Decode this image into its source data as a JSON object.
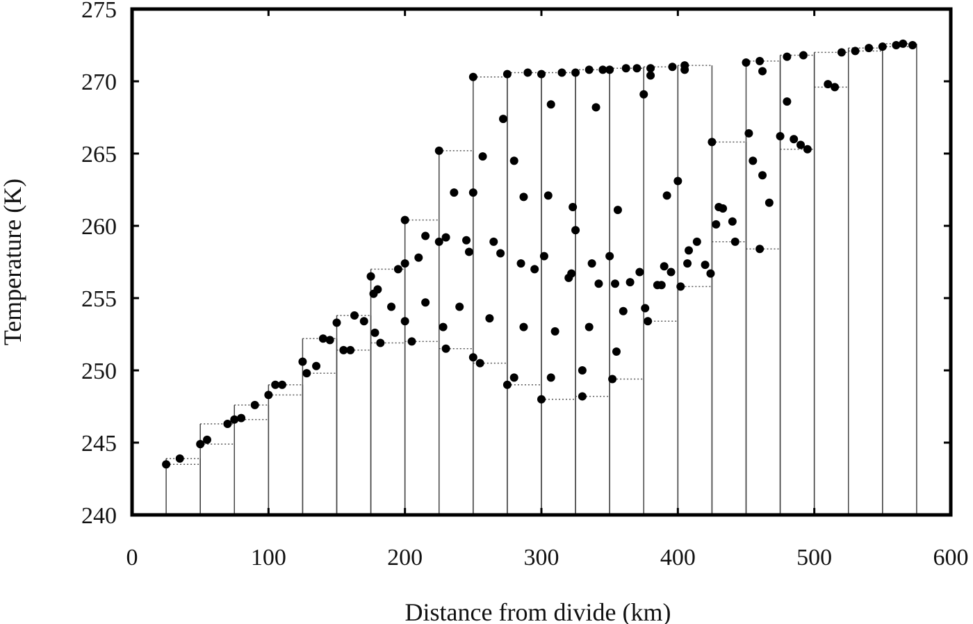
{
  "chart_data": {
    "type": "scatter",
    "title": "",
    "xlabel": "Distance from divide (km)",
    "ylabel": "Temperature (K)",
    "xlim": [
      0,
      600
    ],
    "ylim": [
      240,
      275
    ],
    "xticks": [
      0,
      100,
      200,
      300,
      400,
      500,
      600
    ],
    "yticks": [
      240,
      245,
      250,
      255,
      260,
      265,
      270,
      275
    ],
    "grid": false,
    "legend": "none",
    "series": [
      {
        "values": [
          [
            25,
            243.5
          ],
          [
            35,
            243.9
          ],
          [
            50,
            244.9
          ],
          [
            55,
            245.2
          ],
          [
            70,
            246.3
          ],
          [
            75,
            246.6
          ],
          [
            80,
            246.7
          ],
          [
            90,
            247.6
          ],
          [
            100,
            248.3
          ],
          [
            105,
            249.0
          ],
          [
            110,
            249.0
          ],
          [
            125,
            250.6
          ],
          [
            128,
            249.8
          ],
          [
            135,
            250.3
          ],
          [
            140,
            252.2
          ],
          [
            145,
            252.1
          ],
          [
            150,
            253.3
          ],
          [
            155,
            251.4
          ],
          [
            160,
            251.4
          ],
          [
            163,
            253.8
          ],
          [
            170,
            253.4
          ],
          [
            175,
            256.5
          ],
          [
            177,
            255.3
          ],
          [
            180,
            255.6
          ],
          [
            178,
            252.6
          ],
          [
            182,
            251.9
          ],
          [
            190,
            254.4
          ],
          [
            195,
            257.0
          ],
          [
            200,
            257.4
          ],
          [
            200,
            253.4
          ],
          [
            200,
            260.4
          ],
          [
            205,
            252.0
          ],
          [
            210,
            257.8
          ],
          [
            215,
            254.7
          ],
          [
            215,
            259.3
          ],
          [
            225,
            258.9
          ],
          [
            225,
            265.2
          ],
          [
            228,
            253.0
          ],
          [
            230,
            259.2
          ],
          [
            230,
            251.5
          ],
          [
            236,
            262.3
          ],
          [
            240,
            254.4
          ],
          [
            245,
            259.0
          ],
          [
            247,
            258.2
          ],
          [
            250,
            270.3
          ],
          [
            250,
            262.3
          ],
          [
            250,
            250.9
          ],
          [
            255,
            250.5
          ],
          [
            257,
            264.8
          ],
          [
            262,
            253.6
          ],
          [
            265,
            258.9
          ],
          [
            270,
            258.1
          ],
          [
            272,
            267.4
          ],
          [
            275,
            270.5
          ],
          [
            275,
            249.0
          ],
          [
            280,
            264.5
          ],
          [
            280,
            249.5
          ],
          [
            285,
            257.4
          ],
          [
            287,
            253.0
          ],
          [
            287,
            262.0
          ],
          [
            290,
            270.6
          ],
          [
            295,
            257.0
          ],
          [
            300,
            270.5
          ],
          [
            302,
            257.9
          ],
          [
            300,
            248.0
          ],
          [
            305,
            262.1
          ],
          [
            307,
            268.4
          ],
          [
            307,
            249.5
          ],
          [
            310,
            252.7
          ],
          [
            315,
            270.6
          ],
          [
            320,
            256.4
          ],
          [
            322,
            256.7
          ],
          [
            323,
            261.3
          ],
          [
            325,
            259.7
          ],
          [
            325,
            270.6
          ],
          [
            330,
            250.0
          ],
          [
            330,
            248.2
          ],
          [
            335,
            253.0
          ],
          [
            335,
            270.8
          ],
          [
            337,
            257.4
          ],
          [
            340,
            268.2
          ],
          [
            342,
            256.0
          ],
          [
            345,
            270.8
          ],
          [
            350,
            270.8
          ],
          [
            350,
            257.9
          ],
          [
            352,
            249.4
          ],
          [
            354,
            256.0
          ],
          [
            355,
            251.3
          ],
          [
            356,
            261.1
          ],
          [
            360,
            254.1
          ],
          [
            362,
            270.9
          ],
          [
            365,
            256.1
          ],
          [
            370,
            270.9
          ],
          [
            372,
            256.8
          ],
          [
            375,
            269.1
          ],
          [
            376,
            254.3
          ],
          [
            378,
            253.4
          ],
          [
            380,
            270.4
          ],
          [
            380,
            270.9
          ],
          [
            385,
            255.9
          ],
          [
            388,
            255.9
          ],
          [
            390,
            257.2
          ],
          [
            392,
            262.1
          ],
          [
            395,
            256.8
          ],
          [
            396,
            271.0
          ],
          [
            400,
            263.1
          ],
          [
            402,
            255.8
          ],
          [
            405,
            270.8
          ],
          [
            405,
            271.1
          ],
          [
            407,
            257.4
          ],
          [
            408,
            258.3
          ],
          [
            414,
            258.9
          ],
          [
            420,
            257.3
          ],
          [
            424,
            256.7
          ],
          [
            425,
            265.8
          ],
          [
            428,
            260.1
          ],
          [
            430,
            261.3
          ],
          [
            433,
            261.2
          ],
          [
            440,
            260.3
          ],
          [
            442,
            258.9
          ],
          [
            450,
            271.3
          ],
          [
            452,
            266.4
          ],
          [
            455,
            264.5
          ],
          [
            460,
            271.4
          ],
          [
            460,
            258.4
          ],
          [
            462,
            263.5
          ],
          [
            462,
            270.7
          ],
          [
            467,
            261.6
          ],
          [
            475,
            266.2
          ],
          [
            480,
            268.6
          ],
          [
            480,
            271.7
          ],
          [
            485,
            266.0
          ],
          [
            490,
            265.6
          ],
          [
            492,
            271.8
          ],
          [
            495,
            265.3
          ],
          [
            510,
            269.8
          ],
          [
            515,
            269.6
          ],
          [
            520,
            272.0
          ],
          [
            530,
            272.1
          ],
          [
            540,
            272.3
          ],
          [
            550,
            272.4
          ],
          [
            560,
            272.5
          ],
          [
            565,
            272.6
          ],
          [
            572,
            272.5
          ]
        ]
      }
    ]
  }
}
